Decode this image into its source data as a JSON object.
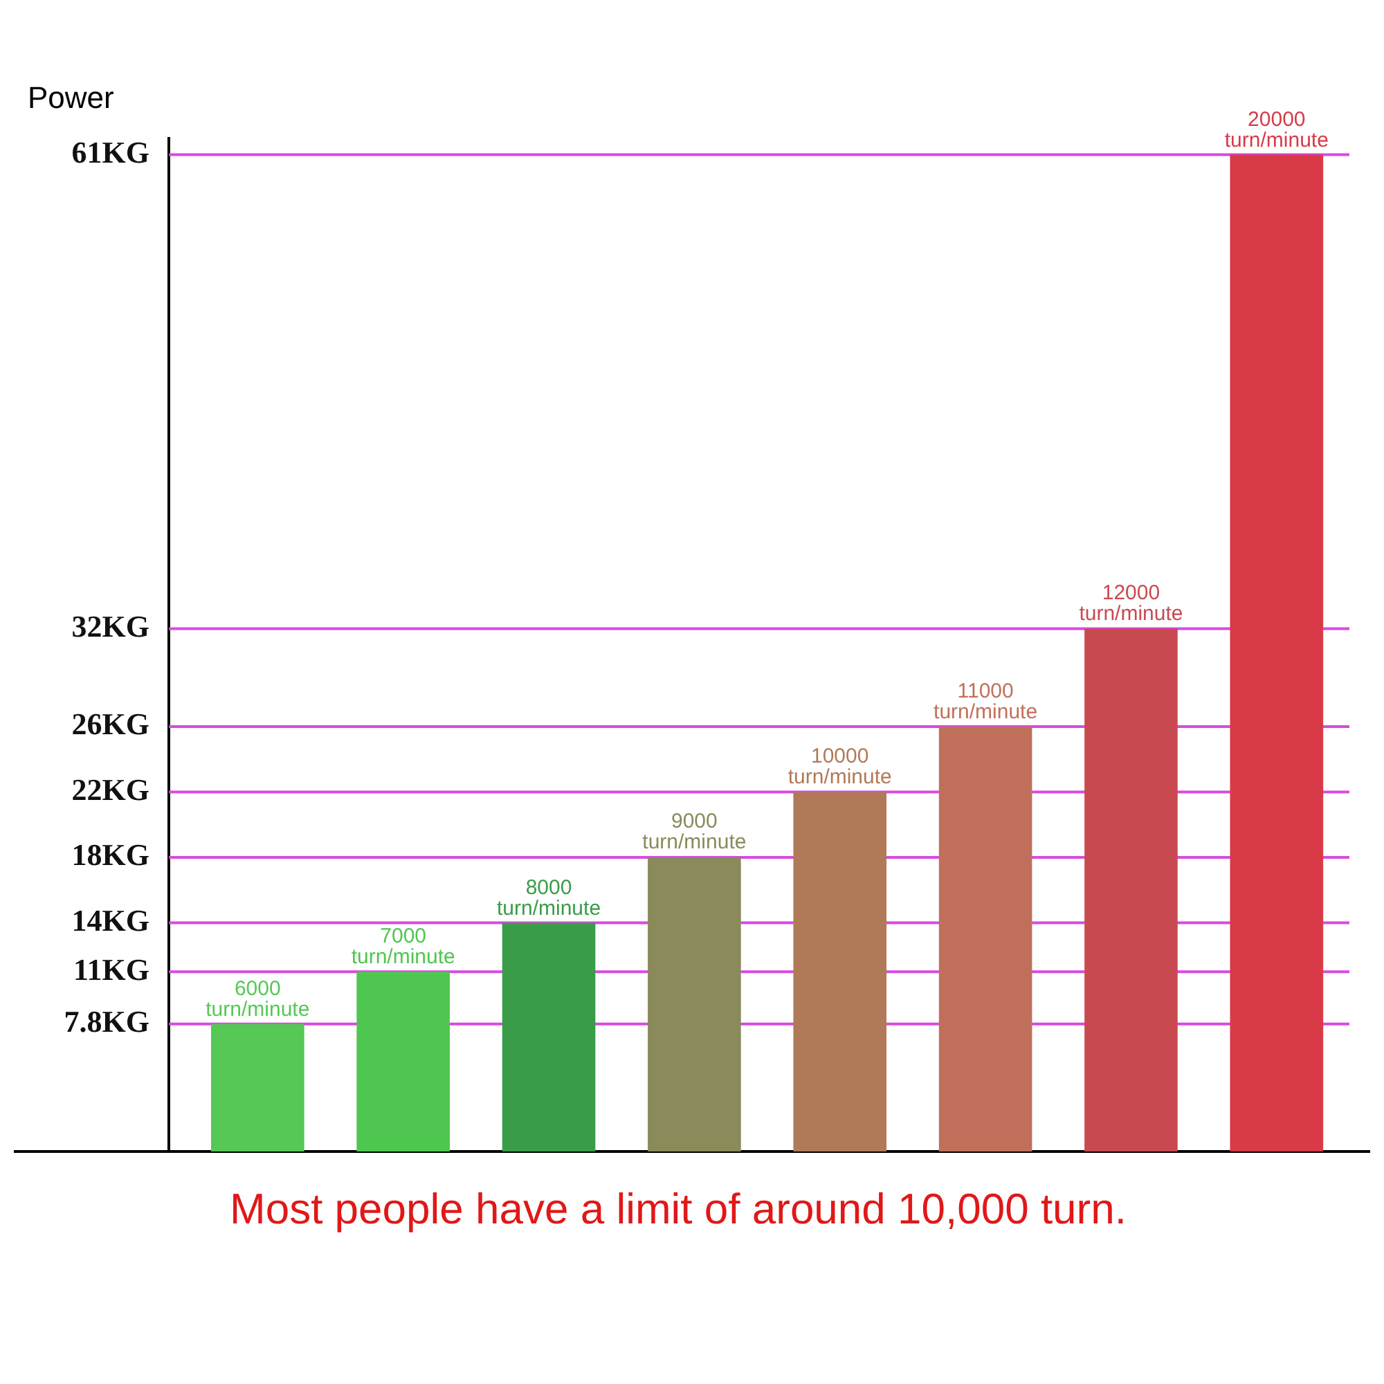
{
  "chart_data": {
    "type": "bar",
    "ylabel": "Power",
    "categories": [
      "6000 turn/minute",
      "7000 turn/minute",
      "8000 turn/minute",
      "9000 turn/minute",
      "10000 turn/minute",
      "11000 turn/minute",
      "12000 turn/minute",
      "20000 turn/minute"
    ],
    "values": [
      7.8,
      11,
      14,
      18,
      22,
      26,
      32,
      61
    ],
    "colors": [
      "#55c855",
      "#4fc650",
      "#3a9c48",
      "#8a8a5a",
      "#b07a58",
      "#c0705a",
      "#c84a50",
      "#d83a48"
    ],
    "ylim": [
      0,
      62
    ],
    "yticks": [
      {
        "value": 7.8,
        "label": "7.8KG"
      },
      {
        "value": 11,
        "label": "11KG"
      },
      {
        "value": 14,
        "label": "14KG"
      },
      {
        "value": 18,
        "label": "18KG"
      },
      {
        "value": 22,
        "label": "22KG"
      },
      {
        "value": 26,
        "label": "26KG"
      },
      {
        "value": 32,
        "label": "32KG"
      },
      {
        "value": 61,
        "label": "61KG"
      }
    ],
    "ref_lines": [
      {
        "axis": "y",
        "value": 7.8,
        "color": "#d84ae0"
      },
      {
        "axis": "y",
        "value": 11,
        "color": "#d84ae0"
      },
      {
        "axis": "y",
        "value": 14,
        "color": "#d84ae0"
      },
      {
        "axis": "y",
        "value": 18,
        "color": "#d84ae0"
      },
      {
        "axis": "y",
        "value": 22,
        "color": "#d84ae0"
      },
      {
        "axis": "y",
        "value": 26,
        "color": "#d84ae0"
      },
      {
        "axis": "y",
        "value": 32,
        "color": "#d84ae0"
      },
      {
        "axis": "y",
        "value": 61,
        "color": "#d84ae0"
      }
    ],
    "annotations": [
      "Most people have a limit of around 10,000 turn."
    ]
  }
}
